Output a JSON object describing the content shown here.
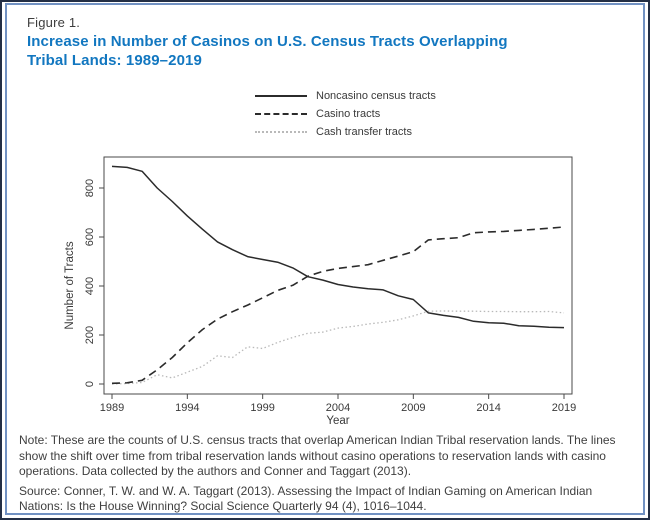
{
  "figure": {
    "label": "Figure 1.",
    "title_line1": "Increase in Number of Casinos on U.S. Census Tracts Overlapping",
    "title_line2": "Tribal Lands: 1989–2019"
  },
  "legend": [
    {
      "label": "Noncasino census tracts",
      "style": "solid"
    },
    {
      "label": "Casino tracts",
      "style": "dashed"
    },
    {
      "label": "Cash transfer tracts",
      "style": "dotted"
    }
  ],
  "colors": {
    "title_blue": "#1277c0",
    "card_border": "#7191c2",
    "outer_frame": "#232e44",
    "line_dark": "#2b2b2b",
    "line_gray": "#b9b9b9",
    "axis": "#4a4a4a"
  },
  "chart_data": {
    "type": "line",
    "xlabel": "Year",
    "ylabel": "Number of Tracts",
    "xticks": [
      1989,
      1994,
      1999,
      2004,
      2009,
      2014,
      2019
    ],
    "yticks": [
      0,
      200,
      400,
      600,
      800
    ],
    "xlim": [
      1989,
      2019
    ],
    "ylim": [
      0,
      900
    ],
    "grid": false,
    "legend_position": "top",
    "x": [
      1989,
      1990,
      1991,
      1992,
      1993,
      1994,
      1995,
      1996,
      1997,
      1998,
      1999,
      2000,
      2001,
      2002,
      2003,
      2004,
      2005,
      2006,
      2007,
      2008,
      2009,
      2010,
      2011,
      2012,
      2013,
      2014,
      2015,
      2016,
      2017,
      2018,
      2019
    ],
    "series": [
      {
        "name": "Noncasino census tracts",
        "stroke": "#2b2b2b",
        "dash": "",
        "width": 1.5,
        "values": [
          888,
          884,
          868,
          800,
          745,
          686,
          632,
          580,
          548,
          520,
          508,
          497,
          474,
          438,
          424,
          406,
          396,
          389,
          384,
          360,
          345,
          290,
          280,
          272,
          256,
          250,
          248,
          238,
          236,
          232,
          230
        ]
      },
      {
        "name": "Casino tracts",
        "stroke": "#2b2b2b",
        "dash": "8,5",
        "width": 1.6,
        "values": [
          3,
          5,
          15,
          58,
          108,
          168,
          222,
          265,
          295,
          322,
          352,
          382,
          403,
          440,
          460,
          472,
          479,
          487,
          505,
          522,
          540,
          588,
          593,
          597,
          617,
          621,
          623,
          627,
          631,
          636,
          641
        ]
      },
      {
        "name": "Cash transfer tracts",
        "stroke": "#b9b9b9",
        "dash": "1.5,2.5",
        "width": 1.3,
        "values": [
          0,
          2,
          6,
          38,
          25,
          48,
          72,
          115,
          108,
          152,
          145,
          170,
          190,
          207,
          212,
          228,
          235,
          245,
          252,
          262,
          278,
          297,
          298,
          297,
          297,
          296,
          296,
          295,
          295,
          296,
          290
        ]
      }
    ]
  },
  "note": "Note: These are the counts of U.S. census tracts that overlap American Indian Tribal reservation lands. The lines show the shift over time from tribal reservation lands without casino operations to reservation lands with casino operations. Data collected by the authors and Conner and Taggart (2013).",
  "source": "Source: Conner, T. W. and W. A. Taggart (2013). Assessing the Impact of Indian Gaming on American Indian Nations: Is the House Winning? Social Science Quarterly 94 (4), 1016–1044."
}
